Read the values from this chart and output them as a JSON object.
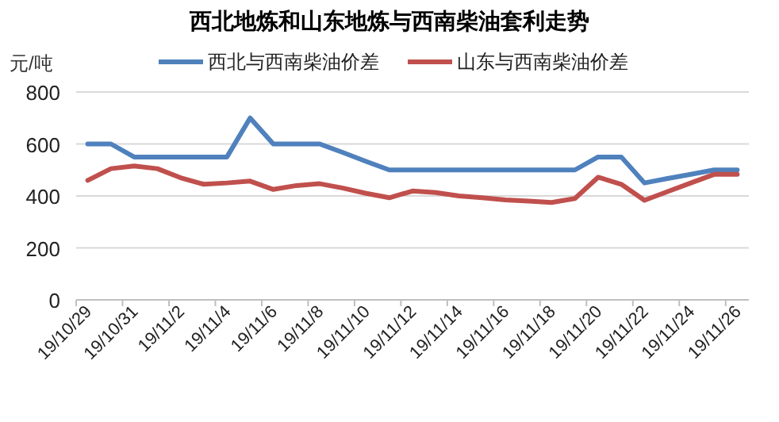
{
  "chart_data": {
    "type": "line",
    "title": "西北地炼和山东地炼与西南柴油套利走势",
    "ylabel": "元/吨",
    "categories": [
      "19/10/29",
      null,
      "19/10/31",
      null,
      "19/11/2",
      null,
      "19/11/4",
      null,
      "19/11/6",
      null,
      "19/11/8",
      null,
      "19/11/10",
      null,
      "19/11/12",
      null,
      "19/11/14",
      null,
      "19/11/16",
      null,
      "19/11/18",
      null,
      "19/11/20",
      null,
      "19/11/22",
      null,
      "19/11/24",
      null,
      "19/11/26"
    ],
    "series": [
      {
        "name": "西北与西南柴油价差",
        "color": "#4f81bd",
        "values": [
          600,
          600,
          550,
          550,
          550,
          550,
          550,
          700,
          600,
          600,
          600,
          567,
          533,
          500,
          500,
          500,
          500,
          500,
          500,
          500,
          500,
          500,
          550,
          550,
          450,
          467,
          483,
          500,
          500
        ]
      },
      {
        "name": "山东与西南柴油价差",
        "color": "#c0504d",
        "values": [
          460,
          505,
          515,
          505,
          470,
          445,
          450,
          457,
          425,
          440,
          447,
          430,
          410,
          393,
          419,
          413,
          400,
          393,
          385,
          380,
          375,
          390,
          472,
          445,
          383,
          417,
          450,
          483,
          483
        ]
      }
    ],
    "ylim": [
      0,
      800
    ],
    "yticks": [
      0,
      200,
      400,
      600,
      800
    ],
    "grid": "y",
    "legend": "top",
    "marker": "none",
    "line_style": "solid"
  }
}
